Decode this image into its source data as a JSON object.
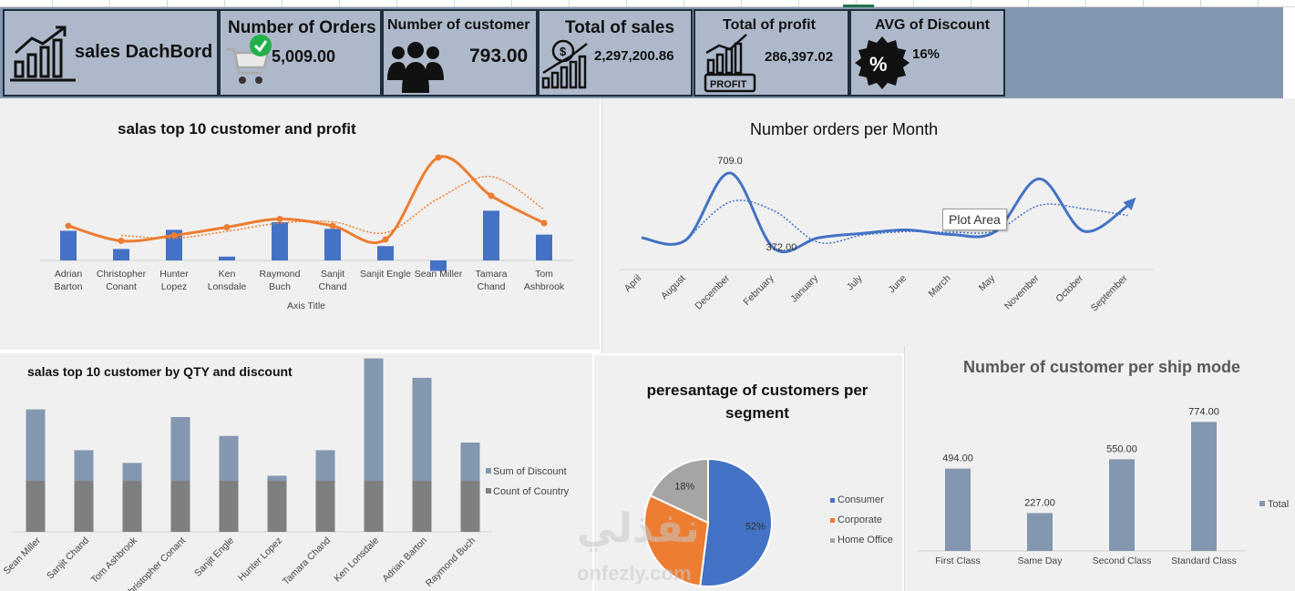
{
  "colors": {
    "banner": "#8497b0",
    "kpi_card": "#adb9ca",
    "bar_blue": "#4472c4",
    "line_orange": "#ed7d31",
    "discount_bar": "#8497b0",
    "country_bar": "#7f7f7f",
    "consumer": "#4472c4",
    "corporate": "#ed7d31",
    "home_office": "#a5a5a5",
    "ship_bar": "#8497b0"
  },
  "kpis": {
    "dashboard": {
      "title": "sales DachBord",
      "icon": "growth-chart-icon"
    },
    "orders": {
      "title": "Number of Orders",
      "value": "5,009.00",
      "icon": "shopping-cart-check-icon"
    },
    "customers": {
      "title": "Number of customer",
      "value": "793.00",
      "icon": "people-group-icon"
    },
    "sales": {
      "title": "Total of sales",
      "value": "2,297,200.86",
      "icon": "dollar-growth-icon"
    },
    "profit": {
      "title": "Total of profit",
      "value": "286,397.02",
      "icon": "profit-chart-icon",
      "badge": "PROFIT"
    },
    "discount": {
      "title": "AVG of Discount",
      "value": "16%",
      "icon": "discount-badge-icon"
    }
  },
  "tooltip": "Plot Area",
  "watermark": {
    "arabic": "نفذلي",
    "latin": "onfezly.com"
  },
  "chart_data": [
    {
      "type": "bar",
      "title": "salas top 10 customer and profit",
      "xlabel": "Axis Title",
      "categories": [
        "Adrian Barton",
        "Christopher Conant",
        "Hunter Lopez",
        "Ken Lonsdale",
        "Raymond Buch",
        "Sanjit Chand",
        "Sanjit Engle",
        "Sean Miller",
        "Tamara Chand",
        "Tom Ashbrook"
      ],
      "category_lines": [
        [
          "Adrian",
          "Barton"
        ],
        [
          "Christopher",
          "Conant"
        ],
        [
          "Hunter",
          "Lopez"
        ],
        [
          "Ken",
          "Lonsdale"
        ],
        [
          "Raymond",
          "Buch"
        ],
        [
          "Sanjit",
          "Chand"
        ],
        [
          "Sanjit Engle"
        ],
        [
          "Sean Miller"
        ],
        [
          "Tamara",
          "Chand"
        ],
        [
          "Tom",
          "Ashbrook"
        ]
      ],
      "bars": [
        31,
        12,
        32,
        4,
        40,
        33,
        15,
        -11,
        52,
        27
      ],
      "line": [
        70,
        59,
        63,
        69,
        75,
        70,
        60,
        120,
        92,
        72
      ],
      "line_trend": [
        null,
        63,
        61,
        66,
        72,
        73,
        65,
        90,
        106,
        82
      ],
      "grid": false,
      "legend": "none"
    },
    {
      "type": "line",
      "title": "Number orders per  Month",
      "categories": [
        "April",
        "August",
        "December",
        "February",
        "January",
        "July",
        "June",
        "March",
        "May",
        "November",
        "October",
        "September"
      ],
      "values": [
        420,
        410,
        709,
        372,
        420,
        440,
        455,
        435,
        447,
        683,
        450,
        563
      ],
      "trend": [
        null,
        407,
        580,
        540,
        400,
        432,
        448,
        445,
        451,
        565,
        550,
        520
      ],
      "data_labels": {
        "2": "709.0",
        "3": "372.00"
      },
      "ylim": [
        300,
        800
      ],
      "legend": "none"
    },
    {
      "type": "bar",
      "title": "salas top 10 customer by QTY and  discount",
      "categories": [
        "Sean Miller",
        "Sanjit Chand",
        "Tom Ashbrook",
        "Christopher Conant",
        "Sanjit Engle",
        "Hunter Lopez",
        "Tamara Chand",
        "Ken Lonsdale",
        "Adrian Barton",
        "Raymond Buch"
      ],
      "category_labels": [
        "Sean Miller",
        "Sanjit Chand",
        "Tom Ashbrook",
        "hristopher Conant",
        "Sanjit Engle",
        "Hunter Lopez",
        "Tamara Chand",
        "Ken Lonsdale",
        "Adrian Barton",
        "Raymond Buch"
      ],
      "series": [
        {
          "name": "Sum of Discount",
          "values": [
            140,
            60,
            35,
            125,
            88,
            10,
            60,
            240,
            202,
            75
          ]
        },
        {
          "name": "Count of Country",
          "values": [
            100,
            100,
            100,
            100,
            100,
            100,
            100,
            100,
            100,
            100
          ]
        }
      ],
      "legend": "right"
    },
    {
      "type": "pie",
      "title": "peresantage of customers per segment",
      "title_lines": [
        "peresantage of customers per",
        "segment"
      ],
      "labels": [
        "Consumer",
        "Corporate",
        "Home Office"
      ],
      "values": [
        52,
        30,
        18
      ],
      "data_labels": [
        "52%",
        "",
        "18%"
      ],
      "legend": "right"
    },
    {
      "type": "bar",
      "title": "Number of customer per ship mode",
      "categories": [
        "First Class",
        "Same Day",
        "Second Class",
        "Standard Class"
      ],
      "values": [
        494,
        227,
        550,
        774
      ],
      "data_labels": [
        "494.00",
        "227.00",
        "550.00",
        "774.00"
      ],
      "series_name": "Total",
      "legend": "right"
    }
  ]
}
